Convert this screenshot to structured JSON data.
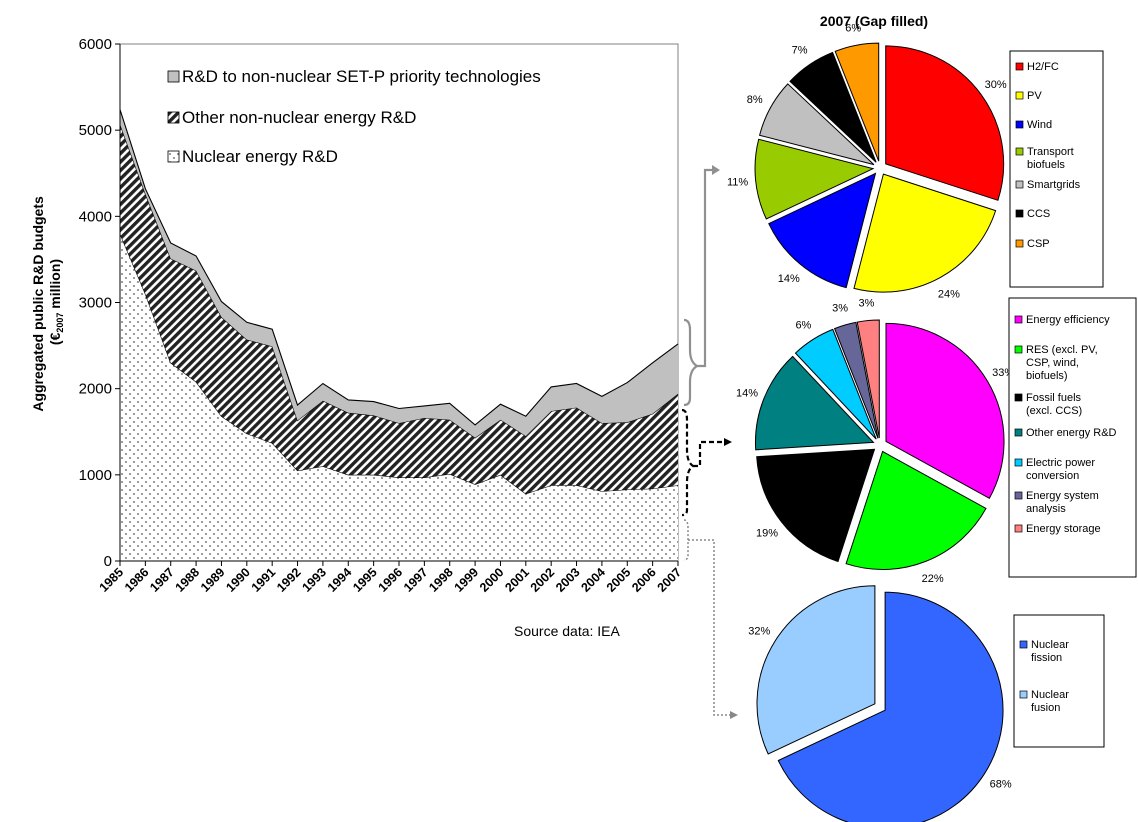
{
  "chart_data": [
    {
      "type": "area",
      "stacked": true,
      "title": "",
      "xlabel": "",
      "ylabel_line1": "Aggregated public R&D budgets",
      "ylabel_line2_prefix": "(€",
      "ylabel_line2_sub": "2007",
      "ylabel_line2_suffix": " million)",
      "ylim": [
        0,
        6000
      ],
      "yticks": [
        "0",
        "1000",
        "2000",
        "3000",
        "4000",
        "5000",
        "6000"
      ],
      "x": [
        "1985",
        "1986",
        "1987",
        "1988",
        "1989",
        "1990",
        "1991",
        "1992",
        "1993",
        "1994",
        "1995",
        "1996",
        "1997",
        "1998",
        "1999",
        "2000",
        "2001",
        "2002",
        "2003",
        "2004",
        "2005",
        "2006",
        "2007"
      ],
      "series": [
        {
          "name": "Nuclear energy R&D",
          "pattern": "dots",
          "values": [
            3800,
            3100,
            2300,
            2080,
            1680,
            1480,
            1370,
            1050,
            1100,
            1000,
            1000,
            970,
            970,
            1010,
            890,
            1000,
            780,
            880,
            880,
            810,
            830,
            840,
            880
          ]
        },
        {
          "name": "Other non-nuclear energy R&D",
          "pattern": "hatch",
          "values": [
            1270,
            1160,
            1210,
            1290,
            1150,
            1090,
            1120,
            580,
            760,
            720,
            690,
            630,
            690,
            630,
            540,
            640,
            670,
            860,
            900,
            790,
            780,
            870,
            1060
          ]
        },
        {
          "name": "R&D to non-nuclear SET-P priority technologies",
          "pattern": "solid",
          "color": "#c0c0c0",
          "values": [
            170,
            60,
            180,
            170,
            180,
            200,
            200,
            180,
            200,
            150,
            160,
            170,
            140,
            190,
            150,
            180,
            230,
            280,
            280,
            310,
            460,
            590,
            580
          ]
        }
      ],
      "legend_placement": "top-left",
      "source_note": "Source data: IEA"
    },
    {
      "type": "pie",
      "title": "2007 (Gap filled)",
      "slices": [
        {
          "label": "H2/FC",
          "value": 30,
          "pct_label": "30%",
          "color": "#ff0000"
        },
        {
          "label": "PV",
          "value": 24,
          "pct_label": "24%",
          "color": "#ffff00"
        },
        {
          "label": "Wind",
          "value": 14,
          "pct_label": "14%",
          "color": "#0000ff"
        },
        {
          "label": "Transport biofuels",
          "value": 11,
          "pct_label": "11%",
          "color": "#99cc00"
        },
        {
          "label": "Smartgrids",
          "value": 8,
          "pct_label": "8%",
          "color": "#c0c0c0"
        },
        {
          "label": "CCS",
          "value": 7,
          "pct_label": "7%",
          "color": "#000000"
        },
        {
          "label": "CSP",
          "value": 6,
          "pct_label": "6%",
          "color": "#ff9900"
        }
      ]
    },
    {
      "type": "pie",
      "title": "",
      "slices": [
        {
          "label": "Energy efficiency",
          "value": 33,
          "pct_label": "33%",
          "color": "#ff00ff"
        },
        {
          "label": "RES (excl. PV, CSP, wind, biofuels)",
          "value": 22,
          "pct_label": "22%",
          "color": "#00ff00"
        },
        {
          "label": "Fossil fuels (excl. CCS)",
          "value": 19,
          "pct_label": "19%",
          "color": "#000000"
        },
        {
          "label": "Other energy R&D",
          "value": 14,
          "pct_label": "14%",
          "color": "#008080"
        },
        {
          "label": "Electric power conversion",
          "value": 6,
          "pct_label": "6%",
          "color": "#00ccff"
        },
        {
          "label": "Energy system analysis",
          "value": 3,
          "pct_label": "3%",
          "color": "#666699"
        },
        {
          "label": "Energy storage",
          "value": 3,
          "pct_label": "3%",
          "color": "#ff8080"
        }
      ]
    },
    {
      "type": "pie",
      "title": "",
      "slices": [
        {
          "label": "Nuclear fission",
          "value": 68,
          "pct_label": "68%",
          "color": "#3366ff"
        },
        {
          "label": "Nuclear fusion",
          "value": 32,
          "pct_label": "32%",
          "color": "#99ccff"
        }
      ]
    }
  ]
}
